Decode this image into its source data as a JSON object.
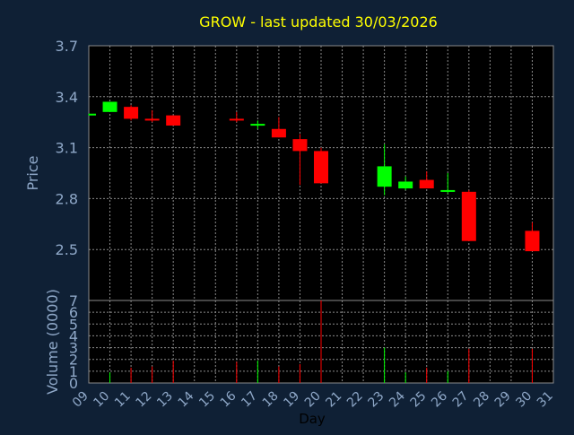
{
  "chart_data": [
    {
      "type": "candlestick",
      "title": "GROW - last updated 30/03/2026",
      "ylabel": "Price",
      "ylim": [
        2.5,
        3.7
      ],
      "y_ticks": [
        "3.7",
        "3.4",
        "3.1",
        "2.8",
        "2.5"
      ],
      "grid": true,
      "up_color": "#00ff00",
      "down_color": "#ff0000",
      "candles": [
        {
          "day": 9,
          "open": 3.29,
          "high": 3.3,
          "low": 3.29,
          "close": 3.3
        },
        {
          "day": 10,
          "open": 3.31,
          "high": 3.37,
          "low": 3.31,
          "close": 3.37
        },
        {
          "day": 11,
          "open": 3.34,
          "high": 3.35,
          "low": 3.26,
          "close": 3.27
        },
        {
          "day": 12,
          "open": 3.27,
          "high": 3.32,
          "low": 3.25,
          "close": 3.26
        },
        {
          "day": 13,
          "open": 3.29,
          "high": 3.29,
          "low": 3.23,
          "close": 3.23
        },
        {
          "day": 16,
          "open": 3.27,
          "high": 3.31,
          "low": 3.25,
          "close": 3.26
        },
        {
          "day": 17,
          "open": 3.23,
          "high": 3.26,
          "low": 3.21,
          "close": 3.24
        },
        {
          "day": 18,
          "open": 3.21,
          "high": 3.28,
          "low": 3.16,
          "close": 3.16
        },
        {
          "day": 19,
          "open": 3.15,
          "high": 3.18,
          "low": 2.88,
          "close": 3.08
        },
        {
          "day": 20,
          "open": 3.08,
          "high": 3.1,
          "low": 2.89,
          "close": 2.89
        },
        {
          "day": 23,
          "open": 2.87,
          "high": 3.12,
          "low": 2.82,
          "close": 2.99
        },
        {
          "day": 24,
          "open": 2.86,
          "high": 2.93,
          "low": 2.85,
          "close": 2.9
        },
        {
          "day": 25,
          "open": 2.91,
          "high": 2.96,
          "low": 2.86,
          "close": 2.86
        },
        {
          "day": 26,
          "open": 2.84,
          "high": 2.95,
          "low": 2.83,
          "close": 2.85
        },
        {
          "day": 27,
          "open": 2.84,
          "high": 2.85,
          "low": 2.55,
          "close": 2.55
        },
        {
          "day": 30,
          "open": 2.61,
          "high": 2.66,
          "low": 2.49,
          "close": 2.49
        }
      ]
    },
    {
      "type": "bar",
      "xlabel": "Day",
      "ylabel": "Volume (0000)",
      "ylim": [
        0,
        7
      ],
      "y_ticks": [
        "0",
        "1",
        "2",
        "3",
        "4",
        "5",
        "6",
        "7"
      ],
      "x_ticks": [
        "09",
        "10",
        "11",
        "12",
        "13",
        "14",
        "15",
        "16",
        "17",
        "18",
        "19",
        "20",
        "21",
        "22",
        "23",
        "24",
        "25",
        "26",
        "27",
        "28",
        "29",
        "30",
        "31"
      ],
      "grid": true,
      "bars": [
        {
          "day": 10,
          "value": 0.9,
          "direction": "up"
        },
        {
          "day": 11,
          "value": 1.3,
          "direction": "down"
        },
        {
          "day": 12,
          "value": 1.4,
          "direction": "down"
        },
        {
          "day": 13,
          "value": 1.9,
          "direction": "down"
        },
        {
          "day": 16,
          "value": 1.8,
          "direction": "down"
        },
        {
          "day": 17,
          "value": 1.9,
          "direction": "up"
        },
        {
          "day": 18,
          "value": 1.4,
          "direction": "down"
        },
        {
          "day": 19,
          "value": 1.6,
          "direction": "down"
        },
        {
          "day": 20,
          "value": 7.0,
          "direction": "down"
        },
        {
          "day": 23,
          "value": 3.0,
          "direction": "up"
        },
        {
          "day": 24,
          "value": 0.9,
          "direction": "up"
        },
        {
          "day": 25,
          "value": 1.3,
          "direction": "down"
        },
        {
          "day": 26,
          "value": 1.0,
          "direction": "up"
        },
        {
          "day": 27,
          "value": 2.9,
          "direction": "down"
        },
        {
          "day": 30,
          "value": 2.9,
          "direction": "down"
        }
      ]
    }
  ],
  "colors": {
    "background": "#0f2035",
    "plot_background": "#000000",
    "title": "#ffff00",
    "axis_text": "#8fa8c8",
    "grid": "#8a8a8a"
  }
}
